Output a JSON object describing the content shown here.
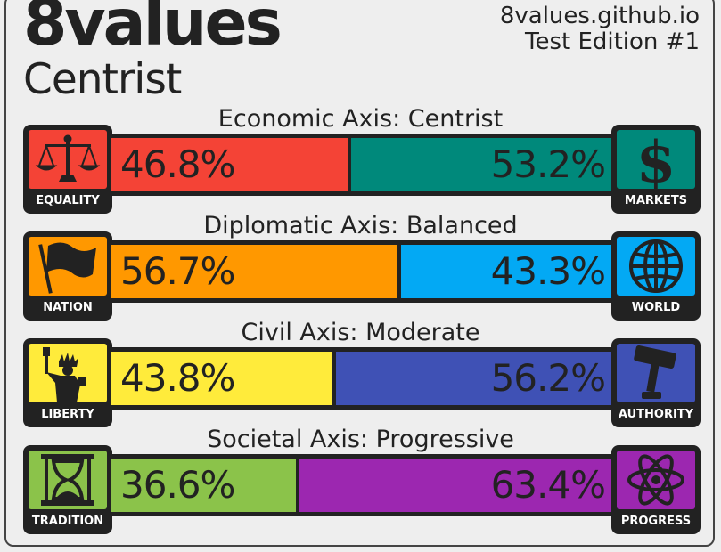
{
  "header": {
    "title": "8values",
    "ideology": "Centrist",
    "site": "8values.github.io",
    "edition": "Test Edition #1"
  },
  "axes": [
    {
      "label": "Economic Axis: Centrist",
      "left": {
        "name": "EQUALITY",
        "value": 46.8,
        "display": "46.8%",
        "color": "#f44336",
        "icon": "scales-icon"
      },
      "right": {
        "name": "MARKETS",
        "value": 53.2,
        "display": "53.2%",
        "color": "#00897b",
        "icon": "dollar-icon"
      }
    },
    {
      "label": "Diplomatic Axis: Balanced",
      "left": {
        "name": "NATION",
        "value": 56.7,
        "display": "56.7%",
        "color": "#ff9800",
        "icon": "flag-icon"
      },
      "right": {
        "name": "WORLD",
        "value": 43.3,
        "display": "43.3%",
        "color": "#03a9f4",
        "icon": "globe-icon"
      }
    },
    {
      "label": "Civil Axis: Moderate",
      "left": {
        "name": "LIBERTY",
        "value": 43.8,
        "display": "43.8%",
        "color": "#ffeb3b",
        "icon": "statue-of-liberty-icon"
      },
      "right": {
        "name": "AUTHORITY",
        "value": 56.2,
        "display": "56.2%",
        "color": "#3f51b5",
        "icon": "gavel-icon"
      }
    },
    {
      "label": "Societal Axis: Progressive",
      "left": {
        "name": "TRADITION",
        "value": 36.6,
        "display": "36.6%",
        "color": "#8bc34a",
        "icon": "hourglass-icon"
      },
      "right": {
        "name": "PROGRESS",
        "value": 63.4,
        "display": "63.4%",
        "color": "#9c27b0",
        "icon": "atom-icon"
      }
    }
  ]
}
